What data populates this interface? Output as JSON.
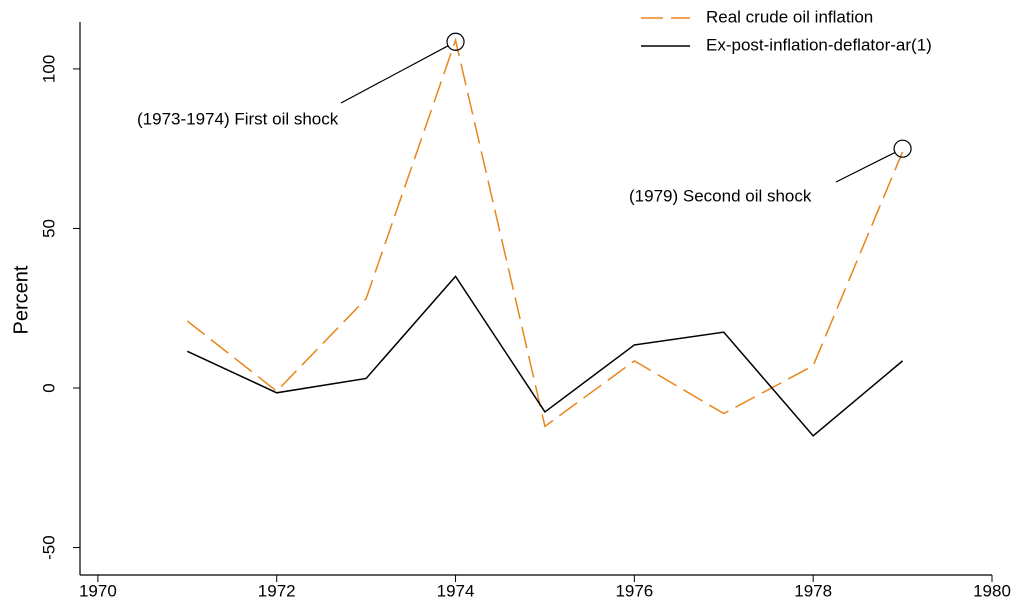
{
  "chart_data": {
    "type": "line",
    "y_label": "Percent",
    "x": [
      1971,
      1972,
      1973,
      1974,
      1975,
      1976,
      1977,
      1978,
      1979
    ],
    "series": [
      {
        "name": "Real crude oil inflation",
        "color": "#e8861a",
        "dash": true,
        "values": [
          21,
          -1,
          28,
          109,
          -12,
          8.5,
          -8,
          7,
          74
        ]
      },
      {
        "name": "Ex-post-inflation-deflator-ar(1)",
        "color": "#000000",
        "dash": false,
        "values": [
          11.5,
          -1.5,
          3,
          35,
          -7.5,
          13.5,
          17.5,
          -15,
          8.5
        ]
      }
    ],
    "annotations": [
      {
        "text": "(1973-1974) First oil shock",
        "x": 1974,
        "y": 108.5
      },
      {
        "text": "(1979) Second oil shock",
        "x": 1979,
        "y": 75
      }
    ],
    "xlim": [
      1969.8,
      1980
    ],
    "xticks": [
      1970,
      1972,
      1974,
      1976,
      1978,
      1980
    ],
    "ylim": [
      -58.6,
      114.7
    ],
    "yticks": [
      -50,
      0,
      50,
      100
    ],
    "grid": false,
    "legend": "top-right"
  }
}
